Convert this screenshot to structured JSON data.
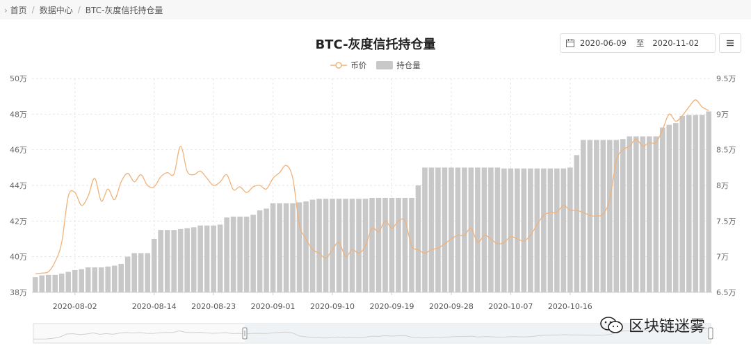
{
  "breadcrumb": {
    "home": "首页",
    "data_center": "数据中心",
    "current": "BTC-灰度信托持仓量"
  },
  "date_range": {
    "start": "2020-06-09",
    "separator": "至",
    "end": "2020-11-02"
  },
  "watermark": "区块链迷雾",
  "colors": {
    "bar": "#c8c8c8",
    "line": "#f0b27a"
  },
  "chart_data": {
    "type": "bar",
    "title": "BTC-灰度信托持仓量",
    "legend_position": "top-center",
    "grid": true,
    "x_tick_labels": [
      "2020-08-02",
      "2020-08-14",
      "2020-08-23",
      "2020-09-01",
      "2020-09-10",
      "2020-09-19",
      "2020-09-28",
      "2020-10-07",
      "2020-10-16"
    ],
    "y_left": {
      "ticks": [
        "38万",
        "40万",
        "42万",
        "44万",
        "46万",
        "48万",
        "50万"
      ],
      "range": [
        38,
        50
      ]
    },
    "y_right": {
      "ticks": [
        "6.5万",
        "7万",
        "7.5万",
        "8万",
        "8.5万",
        "9万",
        "9.5万"
      ],
      "range": [
        6.5,
        9.5
      ]
    },
    "series": [
      {
        "name": "持仓量",
        "type": "bar",
        "values": [
          38.85,
          38.95,
          38.98,
          38.98,
          39.05,
          39.15,
          39.25,
          39.3,
          39.4,
          39.4,
          39.4,
          39.45,
          39.5,
          39.6,
          40.0,
          40.2,
          40.2,
          40.2,
          41.0,
          41.5,
          41.5,
          41.5,
          41.55,
          41.6,
          41.65,
          41.75,
          41.75,
          41.75,
          41.8,
          42.2,
          42.25,
          42.25,
          42.25,
          42.35,
          42.6,
          42.7,
          43.0,
          43.0,
          43.0,
          43.0,
          43.05,
          43.1,
          43.2,
          43.25,
          43.25,
          43.25,
          43.25,
          43.25,
          43.25,
          43.25,
          43.25,
          43.3,
          43.3,
          43.3,
          43.3,
          43.3,
          43.3,
          43.3,
          44.0,
          45.0,
          45.0,
          45.0,
          45.0,
          45.0,
          45.0,
          45.0,
          45.0,
          45.0,
          45.0,
          45.0,
          45.0,
          44.95,
          44.95,
          44.95,
          44.95,
          44.95,
          44.95,
          44.95,
          44.95,
          44.95,
          44.95,
          45.0,
          45.7,
          46.55,
          46.55,
          46.55,
          46.55,
          46.55,
          46.55,
          46.6,
          46.75,
          46.75,
          46.75,
          46.75,
          46.75,
          47.25,
          47.4,
          47.5,
          47.9,
          47.95,
          47.95,
          47.95,
          48.15
        ]
      },
      {
        "name": "币价",
        "type": "line",
        "values": [
          6.76,
          6.77,
          6.79,
          6.93,
          7.2,
          7.85,
          7.9,
          7.72,
          7.85,
          8.1,
          7.78,
          7.95,
          7.8,
          8.05,
          8.17,
          8.05,
          8.15,
          8.0,
          7.98,
          8.12,
          8.18,
          8.16,
          8.55,
          8.2,
          8.15,
          8.2,
          8.1,
          8.0,
          8.05,
          8.15,
          7.94,
          7.98,
          7.9,
          7.98,
          8.0,
          7.95,
          8.1,
          8.18,
          8.28,
          8.1,
          7.45,
          7.25,
          7.1,
          7.05,
          6.98,
          7.1,
          7.2,
          7.0,
          7.1,
          7.05,
          7.15,
          7.4,
          7.35,
          7.5,
          7.4,
          7.5,
          7.5,
          7.15,
          7.1,
          7.05,
          7.1,
          7.12,
          7.18,
          7.25,
          7.3,
          7.3,
          7.4,
          7.2,
          7.3,
          7.25,
          7.18,
          7.2,
          7.28,
          7.25,
          7.22,
          7.3,
          7.45,
          7.58,
          7.62,
          7.62,
          7.72,
          7.65,
          7.65,
          7.62,
          7.58,
          7.57,
          7.6,
          7.8,
          8.35,
          8.5,
          8.55,
          8.65,
          8.55,
          8.6,
          8.6,
          8.78,
          9.0,
          8.9,
          8.98,
          9.1,
          9.2,
          9.1,
          9.05
        ]
      }
    ],
    "n_points": 103
  }
}
